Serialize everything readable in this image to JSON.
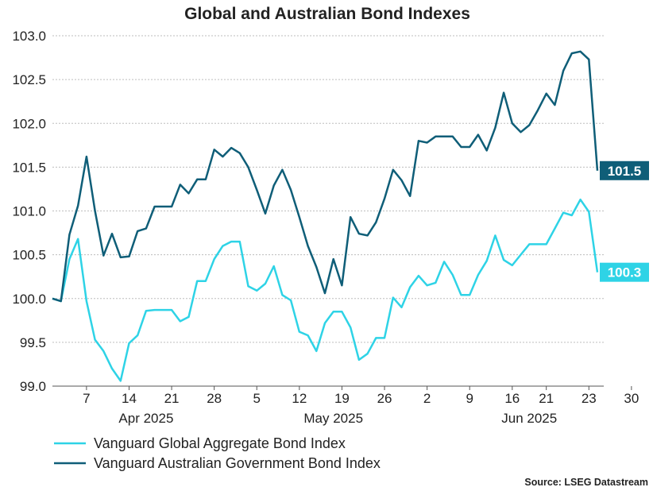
{
  "chart_data": {
    "type": "line",
    "title": "Global and Australian Bond Indexes",
    "xlabel": "",
    "ylabel": "",
    "ylim": [
      99.0,
      103.0
    ],
    "yticks": [
      "103.0",
      "102.5",
      "102.0",
      "101.5",
      "101.0",
      "100.5",
      "100.0",
      "99.5",
      "99.0"
    ],
    "ytick_values": [
      103.0,
      102.5,
      102.0,
      101.5,
      101.0,
      100.5,
      100.0,
      99.5,
      99.0
    ],
    "grid": true,
    "x_tick_labels": [
      {
        "label": "7",
        "index": 4
      },
      {
        "label": "14",
        "index": 9
      },
      {
        "label": "21",
        "index": 14
      },
      {
        "label": "28",
        "index": 19
      },
      {
        "label": "5",
        "index": 24
      },
      {
        "label": "12",
        "index": 29
      },
      {
        "label": "19",
        "index": 34
      },
      {
        "label": "26",
        "index": 39
      },
      {
        "label": "2",
        "index": 44
      },
      {
        "label": "9",
        "index": 49
      },
      {
        "label": "16",
        "index": 54
      },
      {
        "label": "21",
        "index": 58
      },
      {
        "label": "23",
        "index": 63
      },
      {
        "label": "30",
        "index": 68
      }
    ],
    "month_labels": [
      {
        "label": "Apr 2025",
        "index": 11
      },
      {
        "label": "May 2025",
        "index": 33
      },
      {
        "label": "Jun 2025",
        "index": 56
      }
    ],
    "legend_position": "bottom-left",
    "series": [
      {
        "name": "Vanguard Global Aggregate Bond Index",
        "color": "#2ED3E6",
        "end_label": "100.3",
        "values": [
          100.0,
          99.97,
          100.45,
          100.68,
          99.97,
          99.53,
          99.4,
          99.2,
          99.06,
          99.49,
          99.58,
          99.86,
          99.87,
          99.87,
          99.87,
          99.74,
          99.79,
          100.2,
          100.2,
          100.45,
          100.6,
          100.65,
          100.65,
          100.14,
          100.09,
          100.17,
          100.37,
          100.04,
          99.98,
          99.62,
          99.58,
          99.4,
          99.72,
          99.85,
          99.85,
          99.67,
          99.3,
          99.37,
          99.55,
          99.55,
          100.01,
          99.9,
          100.13,
          100.26,
          100.15,
          100.18,
          100.42,
          100.27,
          100.04,
          100.04,
          100.27,
          100.43,
          100.72,
          100.44,
          100.38,
          100.5,
          100.62,
          100.62,
          100.62,
          100.8,
          100.98,
          100.95,
          101.13,
          100.99,
          100.3
        ]
      },
      {
        "name": "Vanguard Australian Government Bond Index",
        "color": "#0F5E78",
        "end_label": "101.5",
        "values": [
          100.0,
          99.97,
          100.73,
          101.06,
          101.62,
          101.0,
          100.49,
          100.74,
          100.47,
          100.48,
          100.77,
          100.8,
          101.05,
          101.05,
          101.05,
          101.3,
          101.2,
          101.36,
          101.36,
          101.7,
          101.62,
          101.72,
          101.66,
          101.5,
          101.24,
          100.97,
          101.29,
          101.47,
          101.24,
          100.93,
          100.6,
          100.36,
          100.06,
          100.45,
          100.15,
          100.93,
          100.74,
          100.72,
          100.87,
          101.14,
          101.47,
          101.35,
          101.17,
          101.8,
          101.78,
          101.85,
          101.85,
          101.85,
          101.73,
          101.73,
          101.87,
          101.69,
          101.95,
          102.35,
          102.0,
          101.9,
          101.98,
          102.15,
          102.34,
          102.21,
          102.6,
          102.8,
          102.82,
          102.73,
          101.46
        ]
      }
    ],
    "source": "Source: LSEG Datastream"
  }
}
